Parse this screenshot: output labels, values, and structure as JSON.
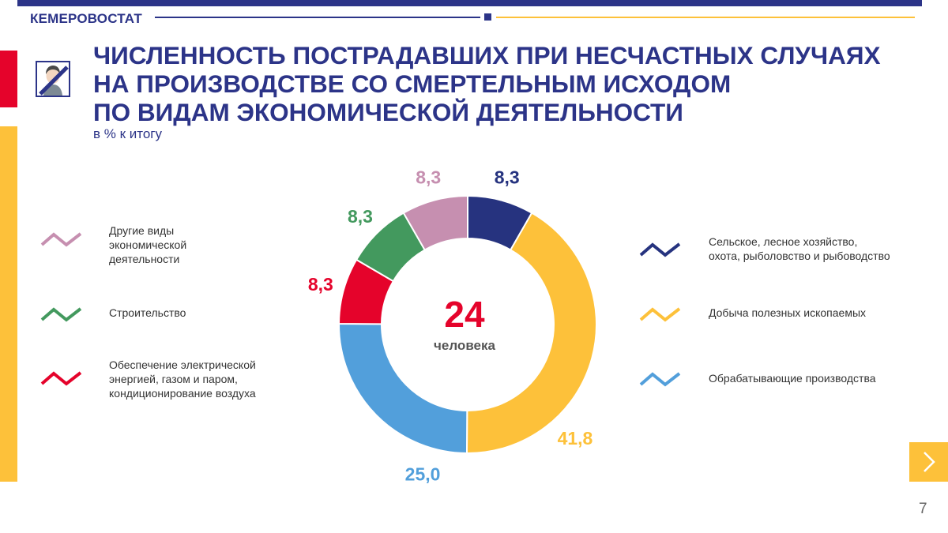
{
  "header": {
    "brand": "КЕМЕРОВОСТАТ"
  },
  "title_lines": [
    "ЧИСЛЕННОСТЬ ПОСТРАДАВШИХ ПРИ НЕСЧАСТНЫХ СЛУЧАЯХ",
    "НА ПРОИЗВОДСТВЕ СО СМЕРТЕЛЬНЫМ ИСХОДОМ",
    "ПО ВИДАМ ЭКОНОМИЧЕСКОЙ ДЕЯТЕЛЬНОСТИ"
  ],
  "subtitle": "в % к итогу",
  "center": {
    "value": "24",
    "unit": "человека"
  },
  "colors": {
    "brand": "#2c3488",
    "accent_red": "#e5032b",
    "accent_yellow": "#fdc13a"
  },
  "chart_data": {
    "type": "pie",
    "style": "donut",
    "start_angle_deg": 0,
    "direction": "clockwise",
    "series": [
      {
        "name": "Сельское, лесное хозяйство, охота, рыболовство и рыбоводство",
        "value": 8.3,
        "label": "8,3",
        "color": "#26337f"
      },
      {
        "name": "Добыча полезных ископаемых",
        "value": 41.8,
        "label": "41,8",
        "color": "#fdc13a"
      },
      {
        "name": "Обрабатывающие производства",
        "value": 25.0,
        "label": "25,0",
        "color": "#529fdb"
      },
      {
        "name": "Обеспечение электрической энергией, газом и паром, кондиционирование воздуха",
        "value": 8.3,
        "label": "8,3",
        "color": "#e5032b"
      },
      {
        "name": "Строительство",
        "value": 8.3,
        "label": "8,3",
        "color": "#43995e"
      },
      {
        "name": "Другие виды экономической деятельности",
        "value": 8.3,
        "label": "8,3",
        "color": "#c68fb0"
      }
    ]
  },
  "legend": {
    "left": [
      {
        "text": "Другие виды\nэкономической\nдеятельности",
        "color": "#c68fb0"
      },
      {
        "text": "Строительство",
        "color": "#43995e"
      },
      {
        "text": "Обеспечение электрической\nэнергией, газом и паром,\nкондиционирование воздуха",
        "color": "#e5032b"
      }
    ],
    "right": [
      {
        "text": "Сельское, лесное хозяйство,\nохота, рыболовство и рыбоводство",
        "color": "#26337f"
      },
      {
        "text": "Добыча полезных ископаемых",
        "color": "#fdc13a"
      },
      {
        "text": "Обрабатывающие производства",
        "color": "#529fdb"
      }
    ]
  },
  "icons": {
    "avatar": "person-mourning-icon",
    "next": "chevron-right-icon"
  },
  "page_number": "7"
}
